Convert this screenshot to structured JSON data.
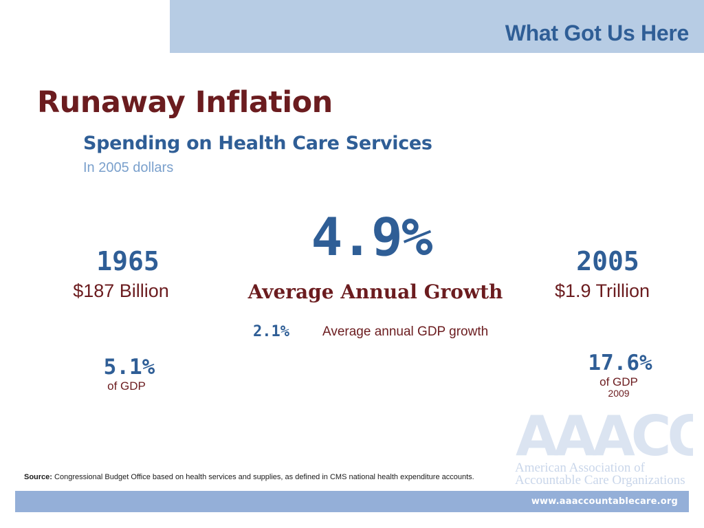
{
  "header": {
    "section_title": "What Got Us Here"
  },
  "slide": {
    "title": "Runaway Inflation",
    "subtitle": "Spending on Health Care Services",
    "subnote": "In 2005 dollars"
  },
  "left": {
    "year": "1965",
    "amount": "$187 Billion",
    "gdp_share": "5.1%",
    "gdp_label": "of GDP"
  },
  "center": {
    "growth_rate": "4.9%",
    "growth_label": "Average Annual Growth",
    "gdp_growth_rate": "2.1%",
    "gdp_growth_label": "Average annual GDP growth"
  },
  "right": {
    "year": "2005",
    "amount": "$1.9 Trillion",
    "gdp_share": "17.6%",
    "gdp_label": "of GDP",
    "gdp_year": "2009"
  },
  "logo": {
    "acronym": "AAACO",
    "line1": "American Association of",
    "line2": "Accountable Care Organizations"
  },
  "footer": {
    "source_label": "Source:",
    "source_text": "Congressional Budget Office based on health services and supplies, as defined in CMS national health expenditure accounts.",
    "url": "www.aaaccountablecare.org"
  },
  "colors": {
    "title_red": "#6b1c1f",
    "accent_blue": "#2f5e96",
    "band_light": "#b7cce4",
    "band_footer": "#94afd8"
  }
}
